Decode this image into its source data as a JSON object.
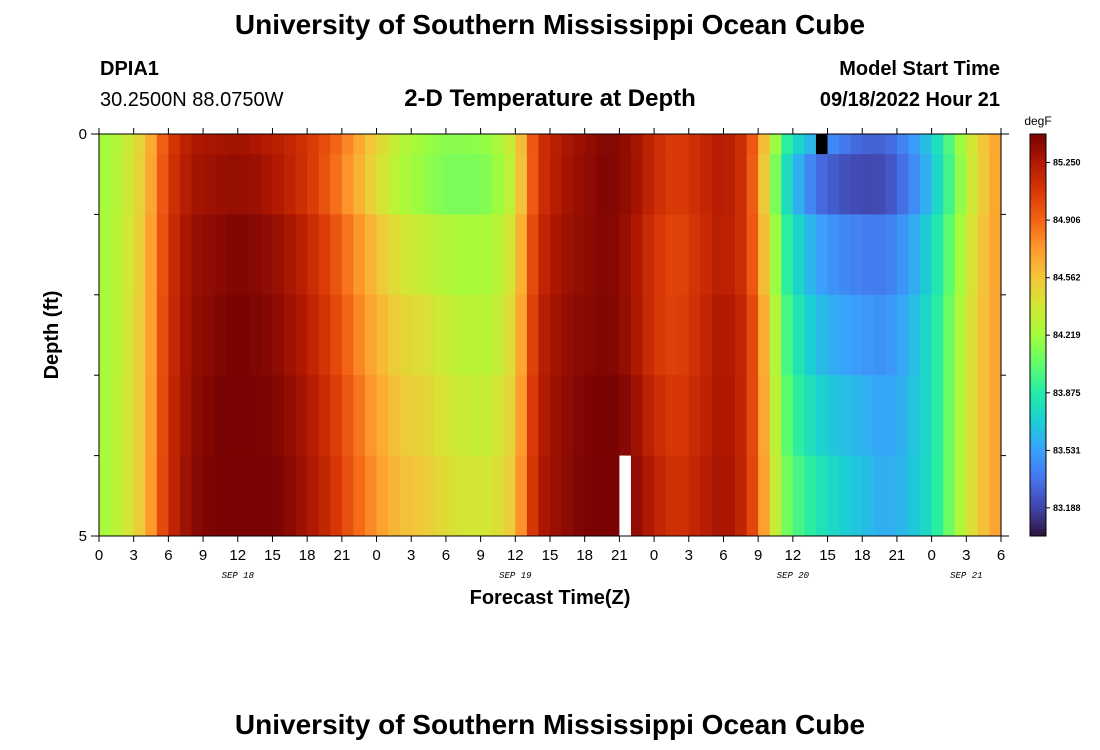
{
  "header": {
    "title": "University of Southern Mississippi Ocean Cube",
    "station_id": "DPIA1",
    "coordinates": "30.2500N  88.0750W",
    "model_start_label": "Model Start Time",
    "model_start_time": "09/18/2022 Hour 21"
  },
  "footer": {
    "title": "University of Southern Mississippi Ocean Cube"
  },
  "chart_data": {
    "type": "heatmap",
    "title": "2-D Temperature at Depth",
    "xlabel": "Forecast Time(Z)",
    "ylabel": "Depth (ft)",
    "x_start_hour": 0,
    "x_end_hour": 78,
    "x_step_hours": 1,
    "x_tick_hours": [
      0,
      3,
      6,
      9,
      12,
      15,
      18,
      21,
      24,
      27,
      30,
      33,
      36,
      39,
      42,
      45,
      48,
      51,
      54,
      57,
      60,
      63,
      66,
      69,
      72,
      75,
      78
    ],
    "x_tick_labels": [
      "0",
      "3",
      "6",
      "9",
      "12",
      "15",
      "18",
      "21",
      "0",
      "3",
      "6",
      "9",
      "12",
      "15",
      "18",
      "21",
      "0",
      "3",
      "6",
      "9",
      "12",
      "15",
      "18",
      "21",
      "0",
      "3",
      "6"
    ],
    "date_labels": [
      {
        "text": "SEP 18",
        "hour": 12
      },
      {
        "text": "SEP 19",
        "hour": 36
      },
      {
        "text": "SEP 20",
        "hour": 60
      },
      {
        "text": "SEP 21",
        "hour": 75
      }
    ],
    "y_range": [
      0,
      5
    ],
    "y_tick_labels": [
      "0",
      "5"
    ],
    "depth_levels": [
      0.0,
      0.5,
      1.5,
      2.5,
      3.5,
      4.5
    ],
    "colorbar": {
      "unit": "degF",
      "min": 83.02,
      "max": 85.42,
      "ticks": [
        "85.250",
        "84.906",
        "84.562",
        "84.219",
        "83.875",
        "83.531",
        "83.188"
      ],
      "tick_values": [
        85.25,
        84.906,
        84.562,
        84.219,
        83.875,
        83.531,
        83.188
      ],
      "palette": [
        "#30123b",
        "#4145ab",
        "#4675ed",
        "#39a2fc",
        "#1bcfd4",
        "#24eca6",
        "#61fc6c",
        "#a4fc3b",
        "#d1e834",
        "#f3c63a",
        "#fe9b2d",
        "#f36315",
        "#d93806",
        "#b11901",
        "#7a0403"
      ]
    },
    "time_profile_keys": [
      [
        0,
        84.2
      ],
      [
        2,
        84.3
      ],
      [
        4,
        84.55
      ],
      [
        5,
        84.8
      ],
      [
        6,
        85.05
      ],
      [
        8,
        85.25
      ],
      [
        10,
        85.28
      ],
      [
        12,
        85.3
      ],
      [
        14,
        85.25
      ],
      [
        16,
        85.2
      ],
      [
        18,
        85.1
      ],
      [
        20,
        84.95
      ],
      [
        22,
        84.75
      ],
      [
        24,
        84.5
      ],
      [
        26,
        84.3
      ],
      [
        28,
        84.2
      ],
      [
        30,
        84.15
      ],
      [
        32,
        84.15
      ],
      [
        34,
        84.2
      ],
      [
        36,
        84.4
      ],
      [
        37,
        84.8
      ],
      [
        38,
        85.1
      ],
      [
        40,
        85.25
      ],
      [
        42,
        85.33
      ],
      [
        44,
        85.4
      ],
      [
        46,
        85.33
      ],
      [
        48,
        85.15
      ],
      [
        50,
        85.05
      ],
      [
        52,
        85.15
      ],
      [
        54,
        85.25
      ],
      [
        56,
        85.1
      ],
      [
        57,
        84.8
      ],
      [
        58,
        84.4
      ],
      [
        59,
        84.0
      ],
      [
        60,
        83.8
      ],
      [
        62,
        83.55
      ],
      [
        64,
        83.4
      ],
      [
        66,
        83.3
      ],
      [
        68,
        83.3
      ],
      [
        70,
        83.45
      ],
      [
        72,
        83.7
      ],
      [
        74,
        84.1
      ],
      [
        76,
        84.5
      ],
      [
        78,
        84.75
      ]
    ],
    "depth_offset_keys": [
      [
        0,
        [
          0,
          0,
          0,
          0,
          0,
          0
        ]
      ],
      [
        14,
        [
          0,
          0.05,
          0.12,
          0.15,
          0.18,
          0.2
        ]
      ],
      [
        22,
        [
          0,
          -0.05,
          0.05,
          0.1,
          0.15,
          0.18
        ]
      ],
      [
        28,
        [
          0,
          -0.02,
          0.15,
          0.25,
          0.3,
          0.35
        ]
      ],
      [
        34,
        [
          0,
          -0.05,
          0.05,
          0.1,
          0.15,
          0.2
        ]
      ],
      [
        40,
        [
          0,
          0.02,
          0.05,
          0.08,
          0.1,
          0.1
        ]
      ],
      [
        48,
        [
          0,
          0,
          -0.05,
          -0.05,
          0,
          0.05
        ]
      ],
      [
        56,
        [
          0,
          0,
          0,
          0.05,
          0.05,
          0.05
        ]
      ],
      [
        62,
        [
          0,
          -0.2,
          0,
          0.1,
          0.2,
          0.3
        ]
      ],
      [
        66,
        [
          0,
          -0.1,
          0.1,
          0.2,
          0.3,
          0.35
        ]
      ],
      [
        72,
        [
          0,
          -0.05,
          0.05,
          0.1,
          0.1,
          0.1
        ]
      ],
      [
        78,
        [
          0,
          0,
          0,
          0,
          0,
          0
        ]
      ]
    ],
    "missing_cells": [
      {
        "hour": 62,
        "level": 0,
        "color": "#000000"
      },
      {
        "hour": 45,
        "level": 5,
        "color": "#ffffff"
      }
    ]
  }
}
